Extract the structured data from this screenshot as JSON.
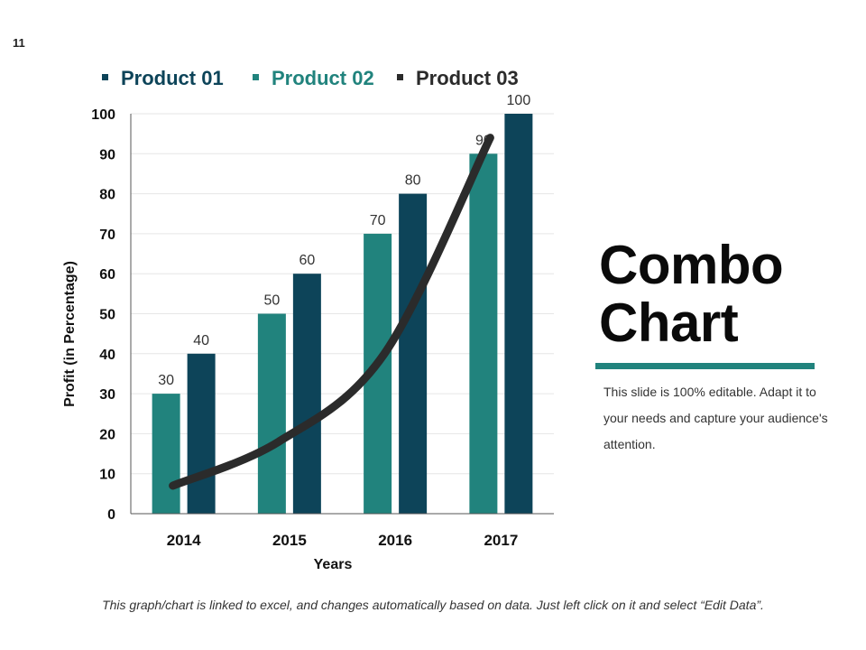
{
  "slide": {
    "number": "11"
  },
  "title": {
    "line1": "Combo",
    "line2": "Chart"
  },
  "description": "This slide is 100% editable. Adapt it to your needs and capture your audience's attention.",
  "footer": "This graph/chart is linked to excel, and changes automatically based on data. Just left click on it and select “Edit Data”.",
  "colors": {
    "product01": "#21837d",
    "product02": "#0d4459",
    "product03": "#2b2b2b",
    "accent_rule": "#21837d",
    "legend_product01_text": "#0d4459",
    "legend_product02_text": "#21837d",
    "legend_product03_text": "#2b2b2b"
  },
  "chart_data": {
    "type": "combo",
    "categories": [
      "2014",
      "2015",
      "2016",
      "2017"
    ],
    "series": [
      {
        "name": "Product 01",
        "kind": "bar",
        "values": [
          30,
          50,
          70,
          90
        ]
      },
      {
        "name": "Product 02",
        "kind": "bar",
        "values": [
          40,
          60,
          80,
          100
        ]
      },
      {
        "name": "Product 03",
        "kind": "line",
        "values": [
          7,
          18,
          40,
          94
        ]
      }
    ],
    "xlabel": "Years",
    "ylabel": "Profit (in Percentage)",
    "ylim": [
      0,
      100
    ],
    "yticks": [
      0,
      10,
      20,
      30,
      40,
      50,
      60,
      70,
      80,
      90,
      100
    ],
    "grid": true,
    "legend_position": "top"
  }
}
